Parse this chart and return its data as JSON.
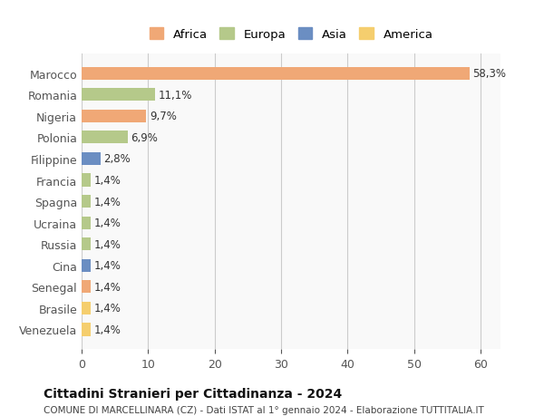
{
  "categories": [
    "Marocco",
    "Romania",
    "Nigeria",
    "Polonia",
    "Filippine",
    "Francia",
    "Spagna",
    "Ucraina",
    "Russia",
    "Cina",
    "Senegal",
    "Brasile",
    "Venezuela"
  ],
  "values": [
    58.3,
    11.1,
    9.7,
    6.9,
    2.8,
    1.4,
    1.4,
    1.4,
    1.4,
    1.4,
    1.4,
    1.4,
    1.4
  ],
  "labels": [
    "58,3%",
    "11,1%",
    "9,7%",
    "6,9%",
    "2,8%",
    "1,4%",
    "1,4%",
    "1,4%",
    "1,4%",
    "1,4%",
    "1,4%",
    "1,4%",
    "1,4%"
  ],
  "continents": [
    "Africa",
    "Europa",
    "Africa",
    "Europa",
    "Asia",
    "Europa",
    "Europa",
    "Europa",
    "Europa",
    "Asia",
    "Africa",
    "America",
    "America"
  ],
  "continent_colors": {
    "Africa": "#F0A876",
    "Europa": "#B5C98A",
    "Asia": "#6B8EC2",
    "America": "#F5CE6E"
  },
  "legend_order": [
    "Africa",
    "Europa",
    "Asia",
    "America"
  ],
  "title": "Cittadini Stranieri per Cittadinanza - 2024",
  "subtitle": "COMUNE DI MARCELLINARA (CZ) - Dati ISTAT al 1° gennaio 2024 - Elaborazione TUTTITALIA.IT",
  "xlim": [
    0,
    63
  ],
  "xticks": [
    0,
    10,
    20,
    30,
    40,
    50,
    60
  ],
  "bg_color": "#ffffff",
  "plot_bg_color": "#f9f9f9",
  "grid_color": "#cccccc"
}
